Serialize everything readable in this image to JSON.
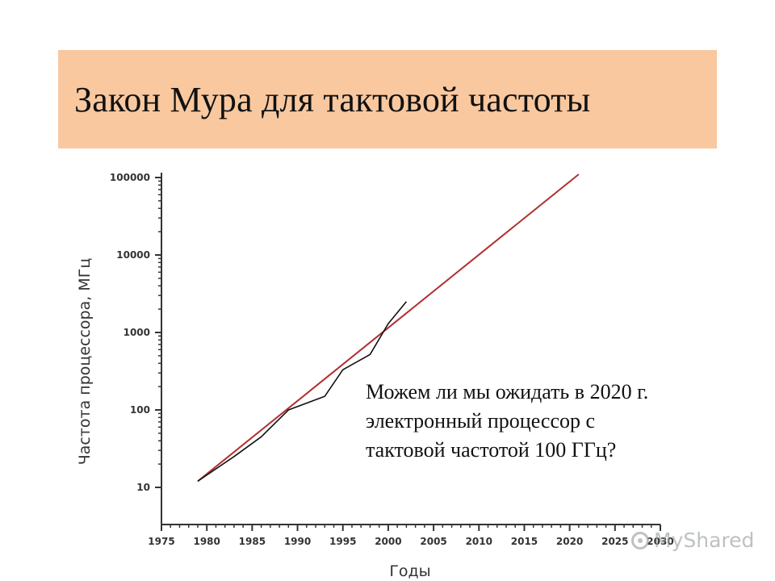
{
  "slide": {
    "title": "Закон Мура для тактовой частоты",
    "question_lines": [
      "Можем ли мы ожидать в 2020 г.",
      "электронный процессор с",
      "тактовой частотой 100 ГГц?"
    ],
    "watermark": "MyShared"
  },
  "colors": {
    "title_background": "#f9c89f",
    "trend_line": "#b23030",
    "actual_line": "#111111",
    "axis": "#333333"
  },
  "chart_data": {
    "type": "line",
    "xlabel": "Годы",
    "ylabel": "Частота процессора, МГц",
    "xlim": [
      1975,
      2030
    ],
    "ylim": [
      10,
      100000
    ],
    "y_scale": "log",
    "x_ticks": [
      1975,
      1980,
      1985,
      1990,
      1995,
      2000,
      2005,
      2010,
      2015,
      2020,
      2025,
      2030
    ],
    "x_tick_labels": [
      "1975",
      "1980",
      "1985",
      "1990",
      "1995",
      "2000",
      "2005",
      "2010",
      "2015",
      "2020",
      "2025",
      "2030"
    ],
    "y_ticks": [
      10,
      100,
      1000,
      10000,
      100000
    ],
    "y_tick_labels": [
      "10",
      "100",
      "1000",
      "10000",
      "100000"
    ],
    "grid": false,
    "series": [
      {
        "x": [
          1979,
          2021
        ],
        "y": [
          12,
          110000
        ]
      },
      {
        "x": [
          1979,
          1983,
          1986,
          1989,
          1993,
          1995,
          1998,
          2000,
          2002
        ],
        "y": [
          12,
          25,
          45,
          100,
          150,
          330,
          520,
          1300,
          2500
        ]
      }
    ]
  }
}
